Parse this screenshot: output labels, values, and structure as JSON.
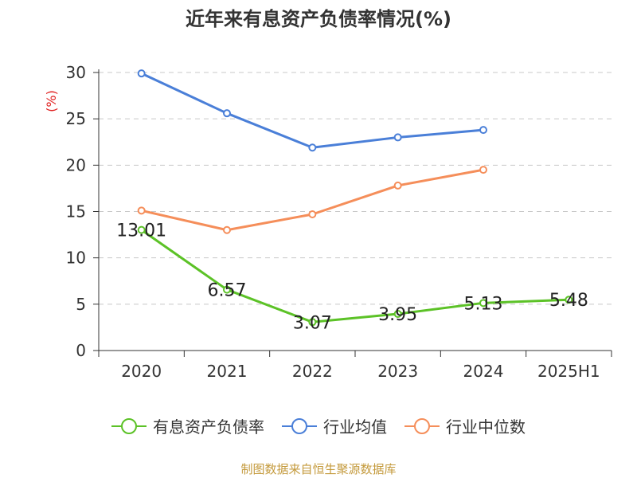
{
  "title": "近年来有息资产负债率情况(%)",
  "footer": "制图数据来自恒生聚源数据库",
  "chart_data": {
    "type": "line",
    "categories": [
      "2020",
      "2021",
      "2022",
      "2023",
      "2024",
      "2025H1"
    ],
    "ylabel": "(%)",
    "ylim": [
      0,
      30
    ],
    "yticks": [
      0,
      5,
      10,
      15,
      20,
      25,
      30
    ],
    "grid": true,
    "legend_position": "bottom",
    "series": [
      {
        "name": "有息资产负债率",
        "color": "#5cc227",
        "values": [
          13.01,
          6.57,
          3.07,
          3.95,
          5.13,
          5.48
        ],
        "labels": [
          "13.01",
          "6.57",
          "3.07",
          "3.95",
          "5.13",
          "5.48"
        ]
      },
      {
        "name": "行业均值",
        "color": "#4a7fd8",
        "values": [
          29.9,
          25.6,
          21.9,
          23.0,
          23.8,
          null
        ]
      },
      {
        "name": "行业中位数",
        "color": "#f58e5a",
        "values": [
          15.1,
          13.0,
          14.7,
          17.8,
          19.5,
          null
        ]
      }
    ]
  }
}
